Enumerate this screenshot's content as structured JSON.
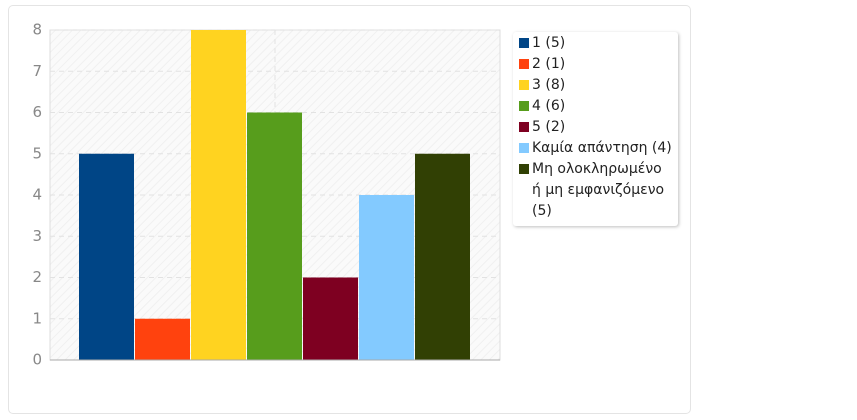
{
  "chart_data": {
    "type": "bar",
    "series": [
      {
        "name": "1 (5)",
        "color": "#004586",
        "values": [
          5
        ]
      },
      {
        "name": "2 (1)",
        "color": "#ff420e",
        "values": [
          1
        ]
      },
      {
        "name": "3 (8)",
        "color": "#ffd320",
        "values": [
          8
        ]
      },
      {
        "name": "4 (6)",
        "color": "#579d1c",
        "values": [
          6
        ]
      },
      {
        "name": "5 (2)",
        "color": "#7e0021",
        "values": [
          2
        ]
      },
      {
        "name": "Καμία απάντηση (4)",
        "color": "#83caff",
        "values": [
          4
        ]
      },
      {
        "name": "Μη ολοκληρωμένο ή μη εμφανιζόμενο (5)",
        "color": "#314004",
        "values": [
          5
        ]
      }
    ],
    "ylim": [
      0,
      8
    ],
    "yticks": [
      0,
      1,
      2,
      3,
      4,
      5,
      6,
      7,
      8
    ],
    "grid": true
  }
}
